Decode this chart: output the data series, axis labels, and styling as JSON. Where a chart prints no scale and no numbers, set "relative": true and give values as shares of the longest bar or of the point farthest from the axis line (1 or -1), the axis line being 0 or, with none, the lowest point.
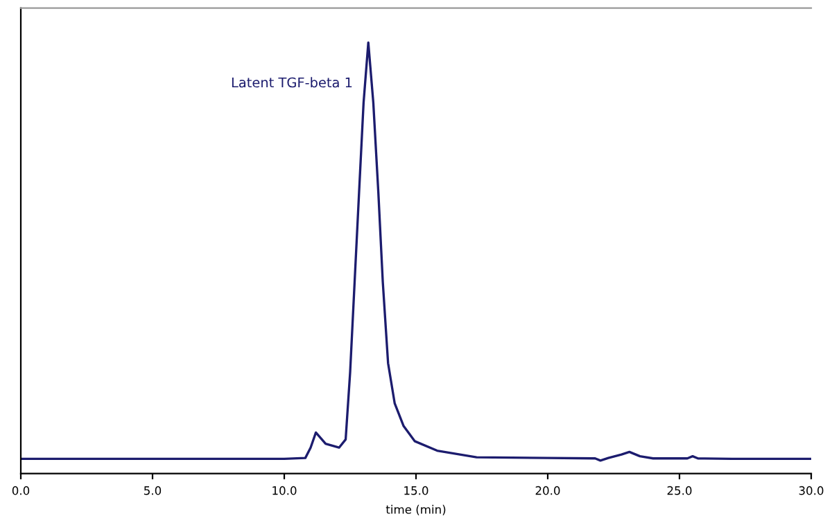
{
  "chart_data": {
    "type": "line",
    "relative": true,
    "xlabel": "time (min)",
    "annotations": [
      {
        "text": "Latent TGF-beta 1",
        "x": 13.19,
        "y": 1.0
      }
    ],
    "xlim": [
      0,
      30
    ],
    "xticks": [
      {
        "value": 0,
        "label": "0.0"
      },
      {
        "value": 5,
        "label": "5.0"
      },
      {
        "value": 10,
        "label": "10.0"
      },
      {
        "value": 15,
        "label": "15.0"
      },
      {
        "value": 20,
        "label": "20.0"
      },
      {
        "value": 25,
        "label": "25.0"
      },
      {
        "value": 30,
        "label": "30.0"
      }
    ],
    "tick_labels": "x",
    "grid": false,
    "legend": false,
    "marker": "none",
    "line_style": "solid",
    "series": [
      {
        "color": "#1c1c6e",
        "x": [
          0,
          5,
          10,
          10.8,
          11.0,
          11.2,
          11.57,
          12.08,
          12.33,
          12.5,
          12.67,
          12.84,
          13.01,
          13.19,
          13.38,
          13.57,
          13.74,
          13.94,
          14.19,
          14.53,
          14.95,
          15.8,
          17.3,
          20,
          21.8,
          22.0,
          22.3,
          22.8,
          23.1,
          23.5,
          24,
          25.3,
          25.5,
          25.7,
          27,
          28,
          30
        ],
        "values": [
          0.034,
          0.034,
          0.034,
          0.036,
          0.06,
          0.095,
          0.069,
          0.06,
          0.079,
          0.235,
          0.444,
          0.653,
          0.86,
          1.0,
          0.86,
          0.653,
          0.444,
          0.256,
          0.163,
          0.11,
          0.075,
          0.053,
          0.0375,
          0.036,
          0.035,
          0.03,
          0.036,
          0.044,
          0.05,
          0.04,
          0.035,
          0.035,
          0.04,
          0.035,
          0.034,
          0.034,
          0.034
        ]
      }
    ]
  }
}
